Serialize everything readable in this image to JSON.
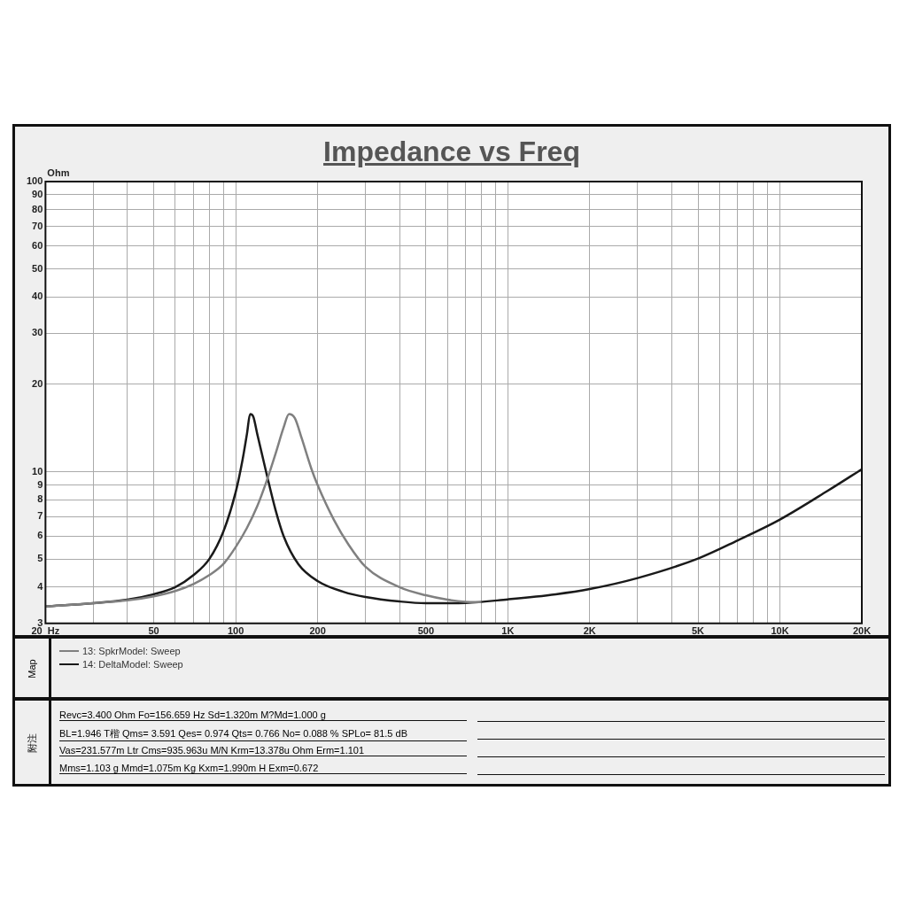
{
  "chart_data": {
    "type": "line",
    "title": "Impedance vs Freq",
    "ylabel": "Ohm",
    "log": "xy",
    "grid": true,
    "legend": "bottom",
    "marker": "none",
    "line_style": "solid",
    "xlim": [
      20,
      20000
    ],
    "ylim": [
      3,
      100
    ],
    "xticks": [
      {
        "value": 20,
        "label": "20  Hz"
      },
      {
        "value": 30,
        "label": null
      },
      {
        "value": 40,
        "label": null
      },
      50,
      {
        "value": 60,
        "label": null
      },
      {
        "value": 70,
        "label": null
      },
      {
        "value": 80,
        "label": null
      },
      {
        "value": 90,
        "label": null
      },
      100,
      200,
      {
        "value": 300,
        "label": null
      },
      {
        "value": 400,
        "label": null
      },
      500,
      {
        "value": 600,
        "label": null
      },
      {
        "value": 700,
        "label": null
      },
      {
        "value": 800,
        "label": null
      },
      {
        "value": 900,
        "label": null
      },
      {
        "value": 1000,
        "label": "1K"
      },
      {
        "value": 2000,
        "label": "2K"
      },
      {
        "value": 3000,
        "label": null
      },
      {
        "value": 4000,
        "label": null
      },
      {
        "value": 5000,
        "label": "5K"
      },
      {
        "value": 6000,
        "label": null
      },
      {
        "value": 7000,
        "label": null
      },
      {
        "value": 8000,
        "label": null
      },
      {
        "value": 9000,
        "label": null
      },
      {
        "value": 10000,
        "label": "10K"
      },
      {
        "value": 20000,
        "label": "20K"
      }
    ],
    "yticks": [
      3,
      4,
      5,
      6,
      7,
      8,
      9,
      10,
      20,
      30,
      40,
      50,
      60,
      70,
      80,
      90,
      100
    ],
    "series": [
      {
        "name": "13: SpkrModel: Sweep",
        "color": "#808080",
        "x": [
          20,
          30,
          40,
          50,
          60,
          70,
          80,
          90,
          100,
          110,
          120,
          130,
          140,
          150,
          157,
          165,
          175,
          190,
          200,
          230,
          260,
          300,
          400,
          500,
          600,
          700,
          800
        ],
        "values": [
          3.43,
          3.52,
          3.6,
          3.72,
          3.88,
          4.1,
          4.4,
          4.8,
          5.5,
          6.4,
          7.6,
          9.3,
          11.5,
          14.2,
          15.8,
          15.3,
          13,
          10.2,
          9,
          6.8,
          5.6,
          4.7,
          4.0,
          3.75,
          3.62,
          3.56,
          3.55
        ]
      },
      {
        "name": "14: DeltaModel: Sweep",
        "color": "#1a1a1a",
        "x": [
          20,
          30,
          40,
          50,
          60,
          70,
          80,
          90,
          100,
          106,
          110,
          113,
          116,
          120,
          130,
          140,
          150,
          170,
          200,
          250,
          300,
          400,
          500,
          700,
          1000,
          1500,
          2000,
          3000,
          5000,
          7000,
          10000,
          15000,
          20000
        ],
        "values": [
          3.43,
          3.52,
          3.62,
          3.78,
          4.0,
          4.4,
          5.0,
          6.2,
          8.5,
          11,
          13.5,
          15.8,
          15.5,
          13.5,
          9.8,
          7.4,
          6.0,
          4.8,
          4.2,
          3.85,
          3.7,
          3.57,
          3.52,
          3.53,
          3.63,
          3.78,
          3.94,
          4.3,
          5.02,
          5.8,
          6.84,
          8.6,
          10.2
        ]
      }
    ],
    "annotations": [
      "Map",
      "附注",
      "Revc=3.400 Ohm  Fo=156.659 Hz  Sd=1.320m M?Md=1.000 g",
      "BL=1.946 T楷  Qms= 3.591  Qes= 0.974  Qts= 0.766  No= 0.088 %  SPLo= 81.5 dB",
      "Vas=231.577m Ltr  Cms=935.963u M/N  Krm=13.378u Ohm  Erm=1.101",
      "Mms=1.103 g  Mmd=1.075m Kg  Kxm=1.990m H  Exm=0.672"
    ]
  }
}
